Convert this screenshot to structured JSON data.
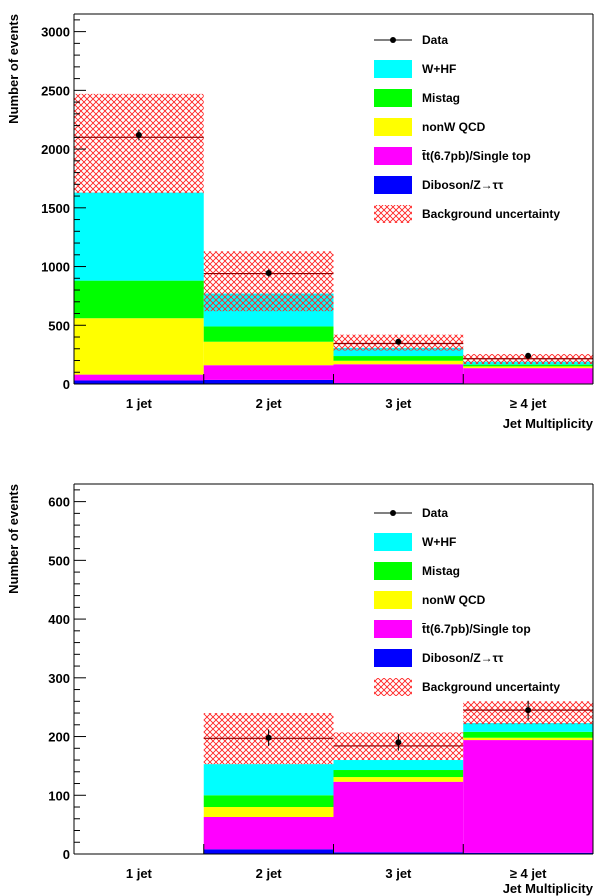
{
  "chart_data": [
    {
      "type": "bar",
      "stacked": true,
      "xlabel": "Jet Multiplicity",
      "ylabel": "Number of events",
      "categories": [
        "1 jet",
        "2 jet",
        "3 jet",
        "≥ 4 jet"
      ],
      "ylim": [
        0,
        3150
      ],
      "yticks": [
        0,
        500,
        1000,
        1500,
        2000,
        2500,
        3000
      ],
      "series": [
        {
          "name": "Diboson/Z→ττ",
          "color": "#0000ff",
          "values": [
            30,
            35,
            8,
            5
          ]
        },
        {
          "name": "t̄t(6.7pb)/Single top",
          "color": "#ff00ff",
          "values": [
            50,
            125,
            160,
            130
          ]
        },
        {
          "name": "nonW QCD",
          "color": "#ffff00",
          "values": [
            480,
            200,
            30,
            15
          ]
        },
        {
          "name": "Mistag",
          "color": "#00ff00",
          "values": [
            320,
            130,
            40,
            15
          ]
        },
        {
          "name": "W+HF",
          "color": "#00ffff",
          "values": [
            750,
            280,
            70,
            25
          ]
        }
      ],
      "uncertainty": {
        "name": "Background uncertainty",
        "low": [
          1625,
          620,
          285,
          170
        ],
        "high": [
          2470,
          1130,
          420,
          255
        ]
      },
      "background_total": [
        2100,
        940,
        345,
        215
      ],
      "data_points": {
        "name": "Data",
        "values": [
          2120,
          945,
          360,
          240
        ],
        "errors": [
          46,
          31,
          19,
          16
        ]
      }
    },
    {
      "type": "bar",
      "stacked": true,
      "xlabel": "Jet Multiplicity",
      "ylabel": "Number of events",
      "categories": [
        "1 jet",
        "2 jet",
        "3 jet",
        "≥ 4 jet"
      ],
      "ylim": [
        0,
        630
      ],
      "yticks": [
        0,
        100,
        200,
        300,
        400,
        500,
        600
      ],
      "series": [
        {
          "name": "Diboson/Z→ττ",
          "color": "#0000ff",
          "values": [
            0,
            8,
            3,
            2
          ]
        },
        {
          "name": "t̄t(6.7pb)/Single top",
          "color": "#ff00ff",
          "values": [
            0,
            55,
            120,
            192
          ]
        },
        {
          "name": "nonW QCD",
          "color": "#ffff00",
          "values": [
            0,
            17,
            8,
            4
          ]
        },
        {
          "name": "Mistag",
          "color": "#00ff00",
          "values": [
            0,
            20,
            12,
            10
          ]
        },
        {
          "name": "W+HF",
          "color": "#00ffff",
          "values": [
            0,
            53,
            17,
            15
          ]
        }
      ],
      "uncertainty": {
        "name": "Background uncertainty",
        "low": [
          0,
          153,
          160,
          221
        ],
        "high": [
          0,
          240,
          207,
          260
        ]
      },
      "background_total": [
        0,
        197,
        184,
        245
      ],
      "data_points": {
        "name": "Data",
        "values": [
          null,
          198,
          190,
          245
        ],
        "errors": [
          null,
          14,
          14,
          16
        ]
      }
    }
  ]
}
